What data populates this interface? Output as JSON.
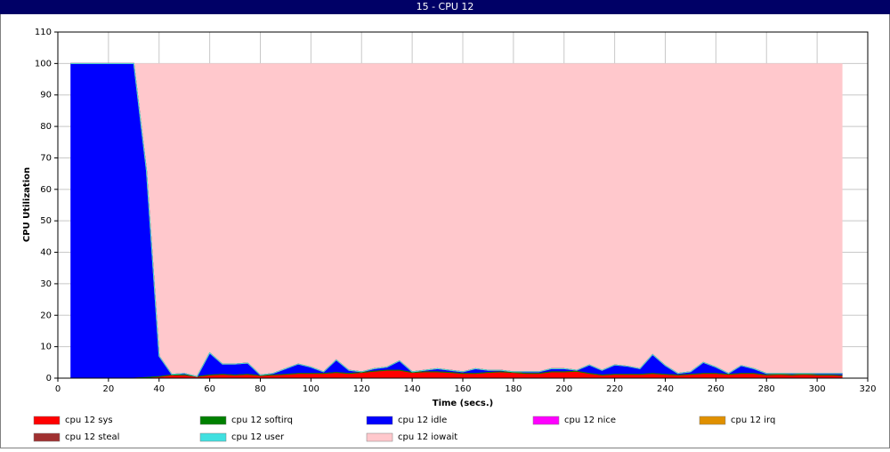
{
  "chart_data": {
    "type": "stacked-area",
    "title": "15 - CPU 12",
    "xlabel": "Time (secs.)",
    "ylabel": "CPU Utilization",
    "xlim": [
      0,
      320
    ],
    "xticks": [
      0,
      20,
      40,
      60,
      80,
      100,
      120,
      140,
      160,
      180,
      200,
      220,
      240,
      260,
      280,
      300,
      320
    ],
    "ylim": [
      0,
      110
    ],
    "yticks": [
      0,
      10,
      20,
      30,
      40,
      50,
      60,
      70,
      80,
      90,
      100,
      110
    ],
    "grid": true,
    "x": [
      5,
      10,
      15,
      20,
      25,
      30,
      35,
      40,
      45,
      50,
      55,
      60,
      65,
      70,
      75,
      80,
      85,
      90,
      95,
      100,
      105,
      110,
      115,
      120,
      125,
      130,
      135,
      140,
      145,
      150,
      155,
      160,
      165,
      170,
      175,
      180,
      185,
      190,
      195,
      200,
      205,
      210,
      215,
      220,
      225,
      230,
      235,
      240,
      245,
      250,
      255,
      260,
      265,
      270,
      275,
      280,
      285,
      290,
      295,
      300,
      305,
      310
    ],
    "series": [
      {
        "name": "cpu 12 sys",
        "color": "#ff0000",
        "values": [
          0,
          0,
          0,
          0,
          0,
          0,
          0.2,
          0.5,
          1,
          1,
          0.5,
          1,
          1.2,
          1,
          1.2,
          0.8,
          1,
          1.2,
          1.5,
          1.5,
          1.5,
          1.8,
          1.5,
          1.8,
          2.2,
          2.5,
          2.5,
          1.8,
          2,
          2,
          1.8,
          1.5,
          1.5,
          1.8,
          2,
          1.8,
          1.5,
          1.5,
          2,
          2,
          2.2,
          1.5,
          1,
          1.2,
          1.2,
          1.2,
          1.5,
          1.2,
          1,
          1.2,
          1.5,
          1.5,
          1.2,
          1.5,
          1.5,
          1,
          1.2,
          1,
          1.2,
          1,
          1,
          0.8
        ]
      },
      {
        "name": "cpu 12 softirq",
        "color": "#008000",
        "values": [
          0,
          0,
          0,
          0,
          0,
          0,
          0,
          0,
          0,
          0,
          0,
          0,
          0,
          0,
          0,
          0,
          0,
          0,
          0,
          0,
          0,
          0,
          0,
          0,
          0,
          0,
          0,
          0,
          0,
          0,
          0,
          0,
          0,
          0,
          0,
          0,
          0,
          0,
          0,
          0,
          0,
          0,
          0,
          0,
          0,
          0,
          0,
          0,
          0,
          0,
          0,
          0,
          0,
          0,
          0,
          0,
          0,
          0,
          0,
          0,
          0,
          0
        ]
      },
      {
        "name": "cpu 12 idle",
        "color": "#0000ff",
        "values": [
          100,
          100,
          100,
          100,
          100,
          100,
          65.8,
          6.5,
          0.2,
          0.5,
          0,
          7,
          3.3,
          3.5,
          3.6,
          0.2,
          0.5,
          1.8,
          3,
          2,
          0.5,
          4,
          1,
          0.2,
          0.8,
          1,
          3,
          0.2,
          0.5,
          1,
          0.7,
          0.5,
          1.5,
          0.7,
          0.5,
          0.2,
          0.5,
          0.5,
          1,
          1,
          0.3,
          2.7,
          1.5,
          3,
          2.6,
          1.8,
          6,
          2.8,
          0.5,
          0.8,
          3.5,
          2,
          0.3,
          2.5,
          1.5,
          0.5,
          0.3,
          0.5,
          0.3,
          0.5,
          0.5,
          0.7
        ]
      },
      {
        "name": "cpu 12 nice",
        "color": "#ff00ff",
        "values": [
          0,
          0,
          0,
          0,
          0,
          0,
          0,
          0,
          0,
          0,
          0,
          0,
          0,
          0,
          0,
          0,
          0,
          0,
          0,
          0,
          0,
          0,
          0,
          0,
          0,
          0,
          0,
          0,
          0,
          0,
          0,
          0,
          0,
          0,
          0,
          0,
          0,
          0,
          0,
          0,
          0,
          0,
          0,
          0,
          0,
          0,
          0,
          0,
          0,
          0,
          0,
          0,
          0,
          0,
          0,
          0,
          0,
          0,
          0,
          0,
          0,
          0
        ]
      },
      {
        "name": "cpu 12 irq",
        "color": "#e09000",
        "values": [
          0,
          0,
          0,
          0,
          0,
          0,
          0,
          0,
          0,
          0,
          0,
          0,
          0,
          0,
          0,
          0,
          0,
          0,
          0,
          0,
          0,
          0,
          0,
          0,
          0,
          0,
          0,
          0,
          0,
          0,
          0,
          0,
          0,
          0,
          0,
          0,
          0,
          0,
          0,
          0,
          0,
          0,
          0,
          0,
          0,
          0,
          0,
          0,
          0,
          0,
          0,
          0,
          0,
          0,
          0,
          0,
          0,
          0,
          0,
          0,
          0,
          0
        ]
      },
      {
        "name": "cpu 12 steal",
        "color": "#a03030",
        "values": [
          0,
          0,
          0,
          0,
          0,
          0,
          0,
          0,
          0,
          0,
          0,
          0,
          0,
          0,
          0,
          0,
          0,
          0,
          0,
          0,
          0,
          0,
          0,
          0,
          0,
          0,
          0,
          0,
          0,
          0,
          0,
          0,
          0,
          0,
          0,
          0,
          0,
          0,
          0,
          0,
          0,
          0,
          0,
          0,
          0,
          0,
          0,
          0,
          0,
          0,
          0,
          0,
          0,
          0,
          0,
          0,
          0,
          0,
          0,
          0,
          0,
          0
        ]
      },
      {
        "name": "cpu 12 user",
        "color": "#40e0e0",
        "values": [
          0,
          0,
          0,
          0,
          0,
          0,
          0,
          0,
          0,
          0,
          0,
          0,
          0,
          0,
          0,
          0,
          0,
          0,
          0,
          0,
          0,
          0,
          0,
          0,
          0,
          0,
          0,
          0,
          0,
          0,
          0,
          0,
          0,
          0,
          0,
          0,
          0,
          0,
          0,
          0,
          0,
          0,
          0,
          0,
          0,
          0,
          0,
          0,
          0,
          0,
          0,
          0,
          0,
          0,
          0,
          0,
          0,
          0,
          0,
          0,
          0,
          0
        ]
      },
      {
        "name": "cpu 12 iowait",
        "color": "#ffc8cc",
        "values": [
          0,
          0,
          0,
          0,
          0,
          0,
          34,
          93,
          98.8,
          98.5,
          99.5,
          92,
          95.5,
          95.5,
          95.2,
          99,
          98.5,
          97,
          95.5,
          96.5,
          98,
          94.2,
          97.5,
          98,
          97,
          96.5,
          94.5,
          98,
          97.5,
          97,
          97.5,
          98,
          97,
          97.5,
          97.5,
          98,
          98,
          98,
          97,
          97,
          97.5,
          95.8,
          97.5,
          95.8,
          96.2,
          97,
          92.5,
          96,
          98.5,
          98,
          95,
          96.5,
          98.5,
          96,
          97,
          98.5,
          98.5,
          98.5,
          98.5,
          98.5,
          98.5,
          98.5
        ]
      }
    ]
  }
}
